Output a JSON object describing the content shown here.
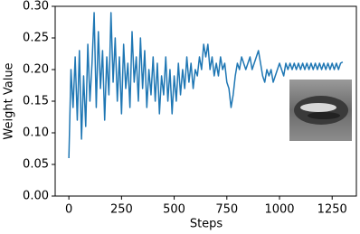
{
  "chart_data": {
    "type": "line",
    "x_label": "Steps",
    "y_label": "Weight Value",
    "color": "#1f77b4",
    "x": [
      0,
      10,
      20,
      30,
      40,
      50,
      60,
      70,
      80,
      90,
      100,
      110,
      120,
      130,
      140,
      150,
      160,
      170,
      180,
      190,
      200,
      210,
      220,
      230,
      240,
      250,
      260,
      270,
      280,
      290,
      300,
      310,
      320,
      330,
      340,
      350,
      360,
      370,
      380,
      390,
      400,
      410,
      420,
      430,
      440,
      450,
      460,
      470,
      480,
      490,
      500,
      510,
      520,
      530,
      540,
      550,
      560,
      570,
      580,
      590,
      600,
      610,
      620,
      630,
      640,
      650,
      660,
      670,
      680,
      690,
      700,
      710,
      720,
      730,
      740,
      750,
      760,
      770,
      780,
      790,
      800,
      810,
      820,
      830,
      840,
      850,
      860,
      870,
      880,
      890,
      900,
      910,
      920,
      930,
      940,
      950,
      960,
      970,
      980,
      990,
      1000,
      1010,
      1020,
      1030,
      1040,
      1050,
      1060,
      1070,
      1080,
      1090,
      1100,
      1110,
      1120,
      1130,
      1140,
      1150,
      1160,
      1170,
      1180,
      1190,
      1200,
      1210,
      1220,
      1230,
      1240,
      1250,
      1260,
      1270,
      1280,
      1290,
      1300
    ],
    "values": [
      0.06,
      0.2,
      0.14,
      0.22,
      0.12,
      0.23,
      0.09,
      0.19,
      0.11,
      0.24,
      0.15,
      0.21,
      0.29,
      0.14,
      0.26,
      0.17,
      0.23,
      0.12,
      0.22,
      0.16,
      0.29,
      0.18,
      0.25,
      0.15,
      0.22,
      0.13,
      0.24,
      0.17,
      0.21,
      0.14,
      0.26,
      0.18,
      0.22,
      0.15,
      0.25,
      0.17,
      0.23,
      0.14,
      0.2,
      0.16,
      0.22,
      0.15,
      0.21,
      0.13,
      0.19,
      0.16,
      0.22,
      0.15,
      0.2,
      0.13,
      0.19,
      0.15,
      0.21,
      0.16,
      0.2,
      0.17,
      0.22,
      0.18,
      0.21,
      0.17,
      0.2,
      0.19,
      0.22,
      0.2,
      0.24,
      0.22,
      0.24,
      0.2,
      0.22,
      0.19,
      0.21,
      0.19,
      0.22,
      0.2,
      0.21,
      0.18,
      0.17,
      0.14,
      0.16,
      0.19,
      0.21,
      0.2,
      0.22,
      0.21,
      0.2,
      0.21,
      0.22,
      0.2,
      0.21,
      0.22,
      0.23,
      0.21,
      0.19,
      0.18,
      0.2,
      0.19,
      0.2,
      0.18,
      0.19,
      0.2,
      0.21,
      0.2,
      0.19,
      0.21,
      0.2,
      0.21,
      0.2,
      0.21,
      0.2,
      0.21,
      0.2,
      0.21,
      0.2,
      0.21,
      0.2,
      0.21,
      0.2,
      0.21,
      0.2,
      0.21,
      0.2,
      0.21,
      0.2,
      0.21,
      0.2,
      0.21,
      0.2,
      0.21,
      0.2,
      0.21,
      0.212
    ],
    "xlim": [
      -65,
      1365
    ],
    "ylim": [
      0,
      0.3
    ],
    "xticks": [
      0,
      250,
      500,
      750,
      1000,
      1250
    ],
    "yticks": [
      {
        "value": 0,
        "label": "0.00"
      },
      {
        "value": 0.05,
        "label": "0.05"
      },
      {
        "value": 0.1,
        "label": "0.10"
      },
      {
        "value": 0.15,
        "label": "0.15"
      },
      {
        "value": 0.2,
        "label": "0.20"
      },
      {
        "value": 0.25,
        "label": "0.25"
      },
      {
        "value": 0.3,
        "label": "0.30"
      }
    ]
  }
}
